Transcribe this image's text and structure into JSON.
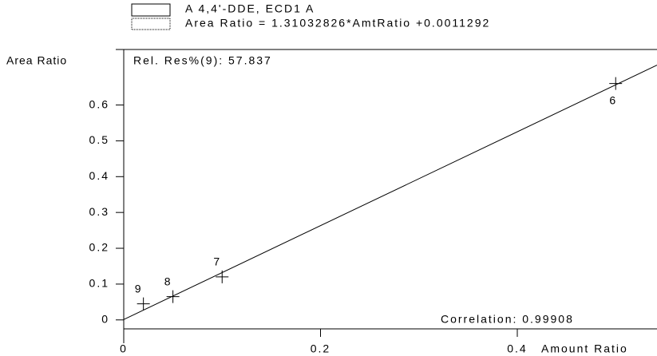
{
  "chart_data": {
    "type": "scatter",
    "legend": [
      "A 4,4'-DDE, ECD1 A",
      "Area Ratio = 1.31032826*AmtRatio +0.0011292"
    ],
    "ylabel": "Area Ratio",
    "xlabel": "Amount Ratio",
    "annotations": [
      "Rel. Res%(9): 57.837",
      "Correlation: 0.99908"
    ],
    "x": [
      0.5,
      0.1,
      0.05,
      0.02
    ],
    "y": [
      0.66,
      0.12,
      0.065,
      0.045
    ],
    "point_labels": [
      "6",
      "7",
      "8",
      "9"
    ],
    "fit": {
      "slope": 1.31032826,
      "intercept": 0.0011292
    },
    "xlim": [
      0,
      0.542
    ],
    "ylim": [
      -0.025,
      0.755
    ],
    "xticks": [
      0,
      0.2,
      0.4
    ],
    "yticks": [
      0,
      0.1,
      0.2,
      0.3,
      0.4,
      0.5,
      0.6
    ],
    "color": "#000000"
  }
}
